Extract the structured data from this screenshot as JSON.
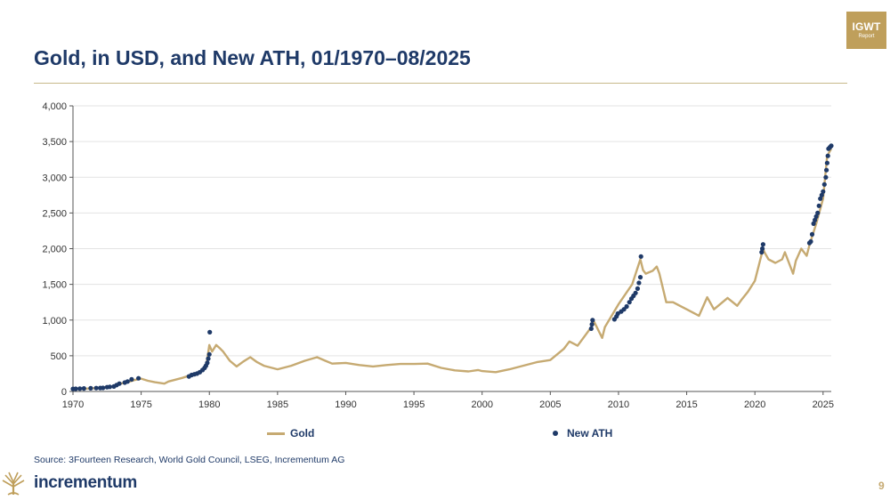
{
  "header": {
    "title": "Gold, in USD, and New ATH, 01/1970–08/2025",
    "logo_main": "IGWT",
    "logo_sub": "Report"
  },
  "footer": {
    "source": "Source: 3Fourteen Research, World Gold Council, LSEG, Incrementum AG",
    "brand": "incrementum",
    "page_number": "9"
  },
  "colors": {
    "gold_line": "#c6aa72",
    "ath_dot": "#1f3a68",
    "title": "#1f3a68",
    "accent": "#bf9f5b"
  },
  "chart_data": {
    "type": "line",
    "title": "Gold, in USD, and New ATH, 01/1970–08/2025",
    "xlabel": "",
    "ylabel": "",
    "xlim": [
      1970,
      2025.6
    ],
    "ylim": [
      0,
      4000
    ],
    "x_ticks": [
      "1970",
      "1975",
      "1980",
      "1985",
      "1990",
      "1995",
      "2000",
      "2005",
      "2010",
      "2015",
      "2020",
      "2025"
    ],
    "y_ticks": [
      "0",
      "500",
      "1,000",
      "1,500",
      "2,000",
      "2,500",
      "3,000",
      "3,500",
      "4,000"
    ],
    "grid": "horizontal",
    "legend": "bottom",
    "series": [
      {
        "name": "Gold",
        "kind": "line",
        "color": "#c6aa72",
        "x": [
          1970.0,
          1971.0,
          1972.0,
          1972.5,
          1973.0,
          1973.5,
          1974.0,
          1974.5,
          1975.0,
          1975.5,
          1976.0,
          1976.7,
          1977.0,
          1978.0,
          1978.5,
          1979.0,
          1979.5,
          1979.8,
          1980.0,
          1980.2,
          1980.5,
          1980.8,
          1981.0,
          1981.5,
          1982.0,
          1982.5,
          1983.0,
          1983.5,
          1984.0,
          1985.0,
          1986.0,
          1987.0,
          1987.9,
          1988.5,
          1989.0,
          1990.0,
          1991.0,
          1992.0,
          1993.0,
          1994.0,
          1995.0,
          1996.0,
          1997.0,
          1998.0,
          1999.0,
          1999.7,
          2000.0,
          2001.0,
          2002.0,
          2003.0,
          2004.0,
          2005.0,
          2006.0,
          2006.4,
          2007.0,
          2008.0,
          2008.2,
          2008.8,
          2009.0,
          2010.0,
          2011.0,
          2011.6,
          2011.8,
          2012.0,
          2012.5,
          2012.8,
          2013.0,
          2013.5,
          2014.0,
          2015.0,
          2015.9,
          2016.5,
          2017.0,
          2018.0,
          2018.7,
          2019.0,
          2019.5,
          2020.0,
          2020.6,
          2020.7,
          2021.0,
          2021.5,
          2022.0,
          2022.2,
          2022.8,
          2023.0,
          2023.4,
          2023.8,
          2024.0,
          2024.5,
          2025.0,
          2025.3,
          2025.6
        ],
        "y": [
          35,
          40,
          50,
          65,
          70,
          110,
          130,
          160,
          180,
          150,
          130,
          110,
          140,
          190,
          220,
          240,
          300,
          400,
          650,
          560,
          650,
          600,
          560,
          430,
          350,
          420,
          480,
          410,
          360,
          310,
          360,
          430,
          480,
          430,
          390,
          400,
          370,
          350,
          370,
          385,
          385,
          390,
          330,
          295,
          280,
          300,
          285,
          270,
          310,
          360,
          410,
          440,
          600,
          700,
          640,
          900,
          980,
          750,
          900,
          1220,
          1500,
          1850,
          1700,
          1650,
          1690,
          1750,
          1650,
          1250,
          1250,
          1150,
          1060,
          1320,
          1150,
          1310,
          1200,
          1280,
          1400,
          1550,
          2000,
          1950,
          1850,
          1800,
          1850,
          1950,
          1650,
          1830,
          2000,
          1900,
          2050,
          2350,
          2700,
          3300,
          3400
        ]
      },
      {
        "name": "New ATH",
        "kind": "scatter",
        "color": "#1f3a68",
        "x": [
          1970.0,
          1970.2,
          1970.5,
          1970.8,
          1971.3,
          1971.7,
          1972.0,
          1972.2,
          1972.5,
          1972.7,
          1973.0,
          1973.2,
          1973.4,
          1973.8,
          1974.0,
          1974.3,
          1974.8,
          1978.5,
          1978.7,
          1978.9,
          1979.1,
          1979.3,
          1979.5,
          1979.65,
          1979.75,
          1979.85,
          1979.92,
          1980.0,
          1980.03,
          2008.0,
          2008.05,
          2008.1,
          2009.7,
          2009.85,
          2009.95,
          2010.2,
          2010.4,
          2010.6,
          2010.8,
          2010.95,
          2011.1,
          2011.25,
          2011.4,
          2011.5,
          2011.6,
          2011.65,
          2020.5,
          2020.55,
          2020.6,
          2024.0,
          2024.1,
          2024.2,
          2024.3,
          2024.4,
          2024.5,
          2024.6,
          2024.7,
          2024.8,
          2024.9,
          2025.0,
          2025.1,
          2025.2,
          2025.25,
          2025.3,
          2025.35,
          2025.4,
          2025.5,
          2025.6
        ],
        "y": [
          36,
          38,
          40,
          42,
          45,
          47,
          48,
          50,
          60,
          65,
          70,
          90,
          110,
          125,
          140,
          170,
          185,
          210,
          230,
          240,
          250,
          270,
          300,
          330,
          360,
          400,
          460,
          520,
          830,
          880,
          940,
          1000,
          1010,
          1050,
          1090,
          1120,
          1150,
          1190,
          1250,
          1300,
          1340,
          1380,
          1440,
          1520,
          1600,
          1890,
          1950,
          2000,
          2060,
          2080,
          2100,
          2200,
          2350,
          2400,
          2450,
          2500,
          2600,
          2700,
          2750,
          2800,
          2900,
          3000,
          3100,
          3200,
          3300,
          3400,
          3420,
          3440
        ]
      }
    ]
  }
}
